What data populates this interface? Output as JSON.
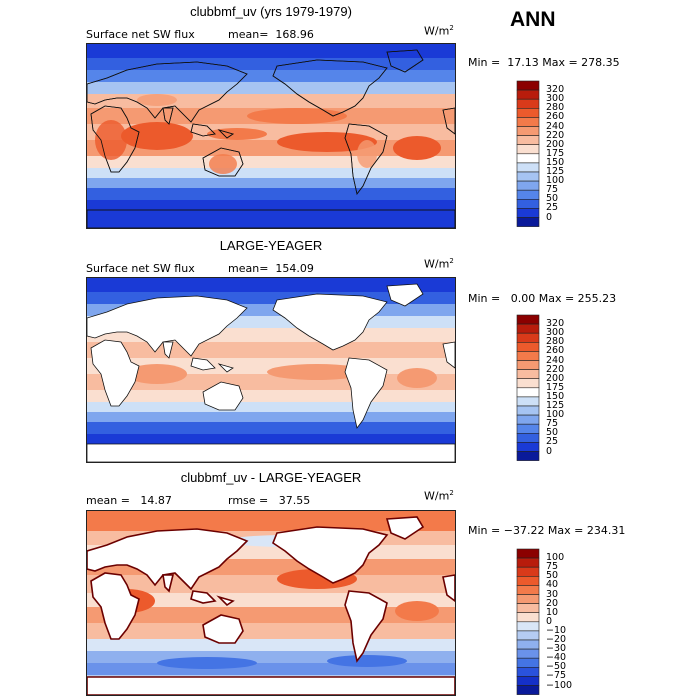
{
  "header": {
    "season": "ANN"
  },
  "panels": [
    {
      "title": "clubbmf_uv (yrs 1979-1979)",
      "left_label": "Surface net SW flux",
      "mean_label": "mean=  168.96",
      "units_base": "W/m",
      "units_exp": "2",
      "minmax": "Min =  17.13 Max = 278.35"
    },
    {
      "title": "LARGE-YEAGER",
      "left_label": "Surface net SW flux",
      "mean_label": "mean=  154.09",
      "units_base": "W/m",
      "units_exp": "2",
      "minmax": "Min =   0.00 Max = 255.23"
    },
    {
      "title": "clubbmf_uv - LARGE-YEAGER",
      "left_label": "mean =   14.87",
      "mean_label": "rmse =   37.55",
      "units_base": "W/m",
      "units_exp": "2",
      "minmax": "Min = −37.22 Max = 234.31"
    }
  ],
  "colorbars": {
    "abs": {
      "labels": [
        "320",
        "300",
        "280",
        "260",
        "240",
        "220",
        "200",
        "175",
        "150",
        "125",
        "100",
        "75",
        "50",
        "25",
        "0"
      ],
      "colors": [
        "#8b0000",
        "#b81c0c",
        "#d93a1a",
        "#ec5a2c",
        "#f37a4a",
        "#f59a72",
        "#f8bca0",
        "#fadfd0",
        "#ffffff",
        "#cde0f7",
        "#a6c4f2",
        "#7fa6ee",
        "#5585ea",
        "#3360e0",
        "#1a3ad6",
        "#0a1a9a"
      ]
    },
    "diff": {
      "labels": [
        "100",
        "75",
        "50",
        "40",
        "30",
        "20",
        "10",
        "0",
        "−10",
        "−20",
        "−30",
        "−40",
        "−50",
        "−75",
        "−100"
      ],
      "colors": [
        "#8b0000",
        "#b81c0c",
        "#d93a1a",
        "#ec5a2c",
        "#f37a4a",
        "#f59a72",
        "#f8bca0",
        "#fadfd0",
        "#d9e6f7",
        "#b5ccf2",
        "#8fb0ee",
        "#6a92ea",
        "#4474e4",
        "#2a52dc",
        "#1530c8",
        "#0a1a9a"
      ]
    }
  },
  "chart_data": [
    {
      "type": "heatmap",
      "title": "clubbmf_uv (yrs 1979-1979)",
      "variable": "Surface net SW flux",
      "units": "W/m2",
      "mean": 168.96,
      "min": 17.13,
      "max": 278.35,
      "levels": [
        0,
        25,
        50,
        75,
        100,
        125,
        150,
        175,
        200,
        220,
        240,
        260,
        280,
        300,
        320
      ]
    },
    {
      "type": "heatmap",
      "title": "LARGE-YEAGER",
      "variable": "Surface net SW flux",
      "units": "W/m2",
      "mean": 154.09,
      "min": 0.0,
      "max": 255.23,
      "levels": [
        0,
        25,
        50,
        75,
        100,
        125,
        150,
        175,
        200,
        220,
        240,
        260,
        280,
        300,
        320
      ]
    },
    {
      "type": "heatmap",
      "title": "clubbmf_uv - LARGE-YEAGER",
      "units": "W/m2",
      "mean": 14.87,
      "rmse": 37.55,
      "min": -37.22,
      "max": 234.31,
      "levels": [
        -100,
        -75,
        -50,
        -40,
        -30,
        -20,
        -10,
        0,
        10,
        20,
        30,
        40,
        50,
        75,
        100
      ]
    }
  ]
}
